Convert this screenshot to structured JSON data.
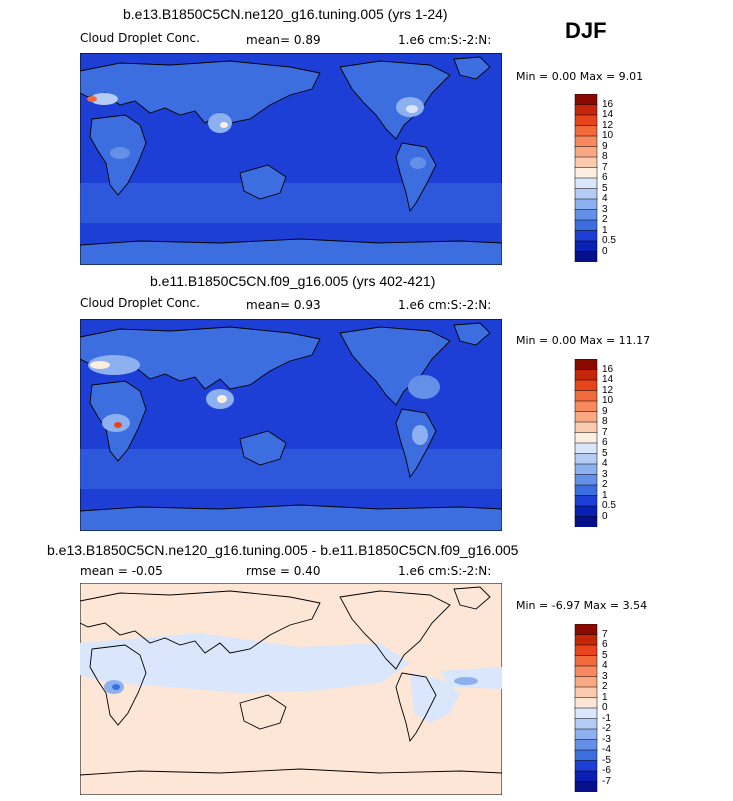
{
  "season": "DJF",
  "panels": [
    {
      "title": "b.e13.B1850C5CN.ne120_g16.tuning.005 (yrs 1-24)",
      "left_label": "Cloud Droplet Conc.",
      "mean_text": "mean=    0.89",
      "units": "1.e6 cm:S:-2:N:",
      "minmax": "Min =    0.00 Max =    9.01",
      "ocean_color": "#1d3fd6",
      "colorbar": {
        "labels": [
          "16",
          "14",
          "12",
          "10",
          "9",
          "8",
          "7",
          "6",
          "5",
          "4",
          "3",
          "2",
          "1",
          "0.5",
          "0"
        ],
        "colors": [
          "#8b0a00",
          "#c4260a",
          "#e8441c",
          "#f06a3c",
          "#f68a5e",
          "#f9a982",
          "#fbcbb0",
          "#fdeee2",
          "#d9e6fb",
          "#b5cdf6",
          "#8db0f0",
          "#6590e8",
          "#3d6ee0",
          "#1d3fd6",
          "#0a1fb4",
          "#06108a"
        ]
      }
    },
    {
      "title": "b.e11.B1850C5CN.f09_g16.005 (yrs 402-421)",
      "left_label": "Cloud Droplet Conc.",
      "mean_text": "mean=    0.93",
      "units": "1.e6 cm:S:-2:N:",
      "minmax": "Min =    0.00 Max =   11.17",
      "ocean_color": "#1d3fd6",
      "colorbar": {
        "labels": [
          "16",
          "14",
          "12",
          "10",
          "9",
          "8",
          "7",
          "6",
          "5",
          "4",
          "3",
          "2",
          "1",
          "0.5",
          "0"
        ],
        "colors": [
          "#8b0a00",
          "#c4260a",
          "#e8441c",
          "#f06a3c",
          "#f68a5e",
          "#f9a982",
          "#fbcbb0",
          "#fdeee2",
          "#d9e6fb",
          "#b5cdf6",
          "#8db0f0",
          "#6590e8",
          "#3d6ee0",
          "#1d3fd6",
          "#0a1fb4",
          "#06108a"
        ]
      }
    },
    {
      "title": "b.e13.B1850C5CN.ne120_g16.tuning.005 - b.e11.B1850C5CN.f09_g16.005",
      "mean_text": "mean =   -0.05",
      "rmse_text": "rmse =    0.40",
      "units": "1.e6 cm:S:-2:N:",
      "minmax": "Min =   -6.97 Max =    3.54",
      "ocean_color": "#fde6d6",
      "colorbar": {
        "labels": [
          "7",
          "6",
          "5",
          "4",
          "3",
          "2",
          "1",
          "0",
          "-1",
          "-2",
          "-3",
          "-4",
          "-5",
          "-6",
          "-7"
        ],
        "colors": [
          "#8b0a00",
          "#c4260a",
          "#e8441c",
          "#f06a3c",
          "#f68a5e",
          "#f9a982",
          "#fbcbb0",
          "#fde6d6",
          "#d9e6fb",
          "#b5cdf6",
          "#8db0f0",
          "#6590e8",
          "#3d6ee0",
          "#1d3fd6",
          "#0a1fb4",
          "#06108a"
        ]
      }
    }
  ],
  "chart_data": [
    {
      "type": "heatmap",
      "title": "b.e13.B1850C5CN.ne120_g16.tuning.005 (yrs 1-24)",
      "variable": "Cloud Droplet Conc.",
      "units": "1.e6 cm:S:-2:N:",
      "mean": 0.89,
      "min": 0.0,
      "max": 9.01,
      "levels": [
        0,
        0.5,
        1,
        2,
        3,
        4,
        5,
        6,
        7,
        8,
        9,
        10,
        12,
        14,
        16
      ]
    },
    {
      "type": "heatmap",
      "title": "b.e11.B1850C5CN.f09_g16.005 (yrs 402-421)",
      "variable": "Cloud Droplet Conc.",
      "units": "1.e6 cm:S:-2:N:",
      "mean": 0.93,
      "min": 0.0,
      "max": 11.17,
      "levels": [
        0,
        0.5,
        1,
        2,
        3,
        4,
        5,
        6,
        7,
        8,
        9,
        10,
        12,
        14,
        16
      ]
    },
    {
      "type": "heatmap",
      "title": "b.e13.B1850C5CN.ne120_g16.tuning.005 - b.e11.B1850C5CN.f09_g16.005",
      "units": "1.e6 cm:S:-2:N:",
      "mean": -0.05,
      "rmse": 0.4,
      "min": -6.97,
      "max": 3.54,
      "levels": [
        -7,
        -6,
        -5,
        -4,
        -3,
        -2,
        -1,
        0,
        1,
        2,
        3,
        4,
        5,
        6,
        7
      ]
    }
  ]
}
